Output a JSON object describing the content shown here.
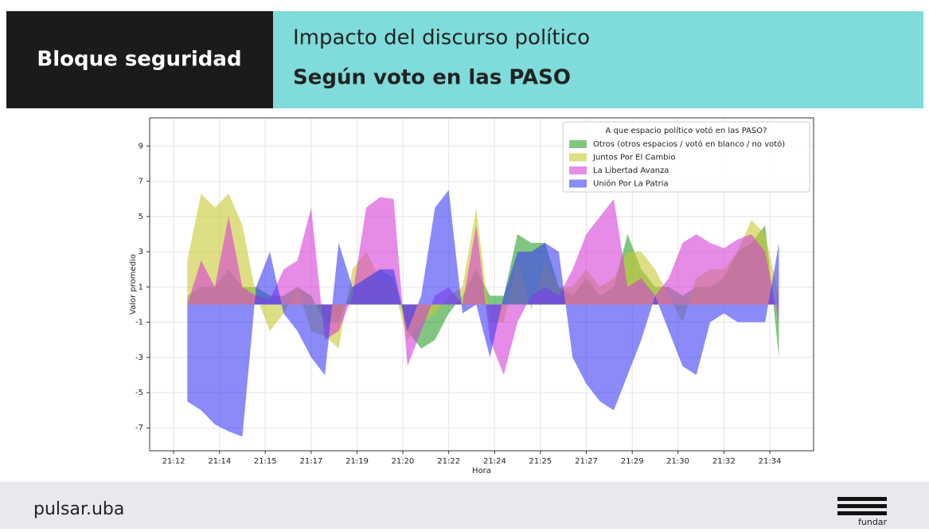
{
  "header": {
    "section": "Bloque seguridad",
    "title": "Impacto del discurso político",
    "subtitle": "Según voto en las PASO"
  },
  "chart_data": {
    "type": "area",
    "xlabel": "Hora",
    "ylabel": "Valor promedio",
    "legend_title": "A que espacio político votó en las PASO?",
    "legend": "upper right",
    "grid": true,
    "xlim": [
      11.63,
      35.76
    ],
    "ylim": [
      -8.3,
      10.6
    ],
    "xticks": [
      {
        "value": 12.5,
        "label": "21:12"
      },
      {
        "value": 14.17,
        "label": "21:14"
      },
      {
        "value": 15.83,
        "label": "21:15"
      },
      {
        "value": 17.5,
        "label": "21:17"
      },
      {
        "value": 19.17,
        "label": "21:19"
      },
      {
        "value": 20.83,
        "label": "21:20"
      },
      {
        "value": 22.5,
        "label": "21:22"
      },
      {
        "value": 24.17,
        "label": "21:24"
      },
      {
        "value": 25.83,
        "label": "21:25"
      },
      {
        "value": 27.5,
        "label": "21:27"
      },
      {
        "value": 29.17,
        "label": "21:29"
      },
      {
        "value": 30.83,
        "label": "21:30"
      },
      {
        "value": 32.5,
        "label": "21:32"
      },
      {
        "value": 34.17,
        "label": "21:34"
      }
    ],
    "yticks": [
      -7,
      -5,
      -3,
      -1,
      1,
      3,
      5,
      7,
      9
    ],
    "x": [
      13,
      13.5,
      14,
      14.5,
      15,
      15.5,
      16,
      16.5,
      17,
      17.5,
      18,
      18.5,
      19,
      19.5,
      20,
      20.5,
      21,
      21.5,
      22,
      22.5,
      23,
      23.5,
      24,
      24.5,
      25,
      25.5,
      26,
      26.5,
      27,
      27.5,
      28,
      28.5,
      29,
      29.5,
      30,
      30.5,
      31,
      31.5,
      32,
      32.5,
      33,
      33.5,
      34,
      34.5
    ],
    "series": [
      {
        "name": "Otros (otros espacios / votó en blanco / no votó)",
        "color": "#2ca02c",
        "values": [
          0.5,
          1,
          1,
          2,
          1,
          1,
          0.5,
          0.5,
          1,
          0.5,
          -1,
          -1,
          1,
          1.5,
          2,
          1.5,
          -1.5,
          -2.5,
          -2,
          -0.5,
          0.5,
          2,
          0.5,
          0.5,
          4,
          3.5,
          3.5,
          1,
          0.5,
          1.5,
          0.5,
          1,
          4,
          2,
          1,
          1,
          0.5,
          1,
          1,
          1.5,
          3,
          3.5,
          4.5,
          -3
        ]
      },
      {
        "name": "Juntos Por El Cambio",
        "color": "#c8c832",
        "values": [
          2.5,
          6.3,
          5.5,
          6.3,
          4.5,
          0.5,
          -1.5,
          -0.5,
          1,
          -1.5,
          -1.8,
          -2.5,
          2,
          3,
          1.5,
          1,
          -2,
          -1,
          -0.5,
          0.5,
          1,
          5.5,
          -1,
          -1,
          2.5,
          -0.3,
          2.5,
          1,
          1,
          2,
          1,
          1.5,
          3,
          3,
          2,
          0.5,
          -1,
          1.5,
          2,
          2,
          3,
          4.8,
          4,
          0.5
        ]
      },
      {
        "name": "La Libertad Avanza",
        "color": "#d63fd6",
        "values": [
          0,
          2.5,
          1,
          5,
          1,
          0.5,
          0.3,
          2,
          2.5,
          5.5,
          -2,
          -1.5,
          0.5,
          5.5,
          6.1,
          6,
          -3.5,
          -1.5,
          0.5,
          1,
          0,
          4.5,
          -2,
          -4,
          -1,
          0.5,
          1,
          0.5,
          2,
          4,
          5,
          6,
          1,
          1.5,
          0.5,
          1.5,
          3.5,
          4,
          3.5,
          3.2,
          3.7,
          4,
          3,
          -1
        ]
      },
      {
        "name": "Unión Por La Patria",
        "color": "#3c3cf5",
        "values": [
          -5.5,
          -6,
          -6.8,
          -7.2,
          -7.5,
          1,
          3,
          -0.5,
          -1.5,
          -3,
          -4,
          3.5,
          1,
          1.5,
          2,
          2,
          -1.5,
          0.5,
          5.5,
          6.5,
          -0.5,
          0,
          -3,
          0.5,
          3,
          3,
          3.5,
          3,
          -3,
          -4.5,
          -5.5,
          -6,
          -4,
          -2,
          0.5,
          -1.5,
          -3.5,
          -4,
          -1,
          -0.5,
          -1,
          -1,
          -1,
          3.5
        ]
      }
    ]
  },
  "footer": {
    "left": "pulsar.uba",
    "right": "fundar"
  }
}
